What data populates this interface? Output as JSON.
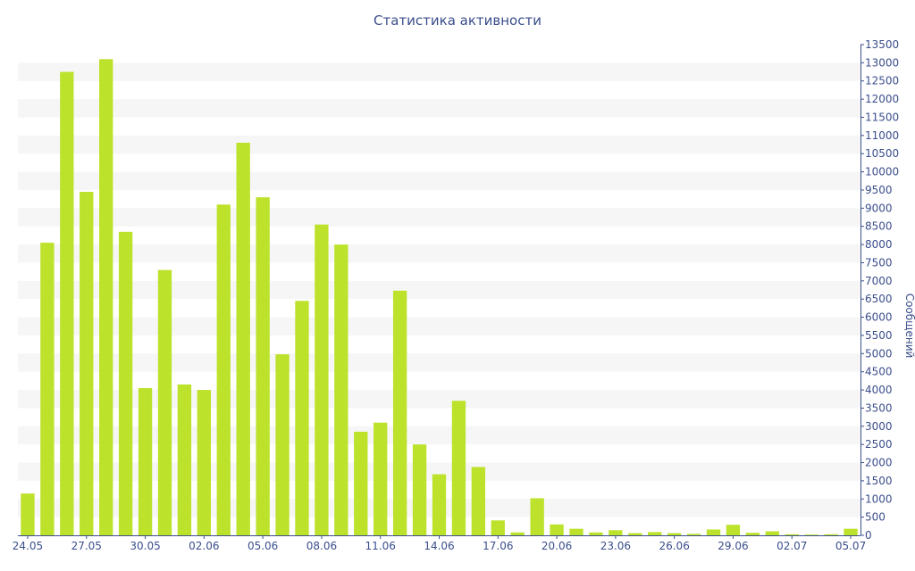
{
  "chart_data": {
    "type": "bar",
    "title": "Статистика активности",
    "xlabel": "",
    "ylabel": "Сообщений",
    "y_axis_position": "right",
    "grid": "alternating-horizontal-bands",
    "ylim": [
      0,
      13500
    ],
    "ytick_step": 500,
    "bar_color": "#bde22c",
    "band_color": "#f6f6f6",
    "text_color": "#3b4e8c",
    "xtick_labels": [
      "24.05",
      "27.05",
      "30.05",
      "02.06",
      "05.06",
      "08.06",
      "11.06",
      "14.06",
      "17.06",
      "20.06",
      "23.06",
      "26.06",
      "29.06",
      "02.07",
      "05.07"
    ],
    "xtick_every": 3,
    "categories": [
      "24.05",
      "25.05",
      "26.05",
      "27.05",
      "28.05",
      "29.05",
      "30.05",
      "31.05",
      "01.06",
      "02.06",
      "03.06",
      "04.06",
      "05.06",
      "06.06",
      "07.06",
      "08.06",
      "09.06",
      "10.06",
      "11.06",
      "12.06",
      "13.06",
      "14.06",
      "15.06",
      "16.06",
      "17.06",
      "18.06",
      "19.06",
      "20.06",
      "21.06",
      "22.06",
      "23.06",
      "24.06",
      "25.06",
      "26.06",
      "27.06",
      "28.06",
      "29.06",
      "30.06",
      "01.07",
      "02.07",
      "03.07",
      "04.07",
      "05.07"
    ],
    "values": [
      1150,
      8050,
      12750,
      9450,
      13100,
      8350,
      4050,
      7300,
      4150,
      4000,
      9100,
      10800,
      9300,
      4980,
      6450,
      8550,
      8000,
      2850,
      3100,
      6730,
      2500,
      1680,
      3700,
      1880,
      410,
      80,
      1020,
      300,
      180,
      80,
      140,
      60,
      90,
      60,
      40,
      160,
      290,
      70,
      110,
      30,
      20,
      30,
      180
    ]
  }
}
